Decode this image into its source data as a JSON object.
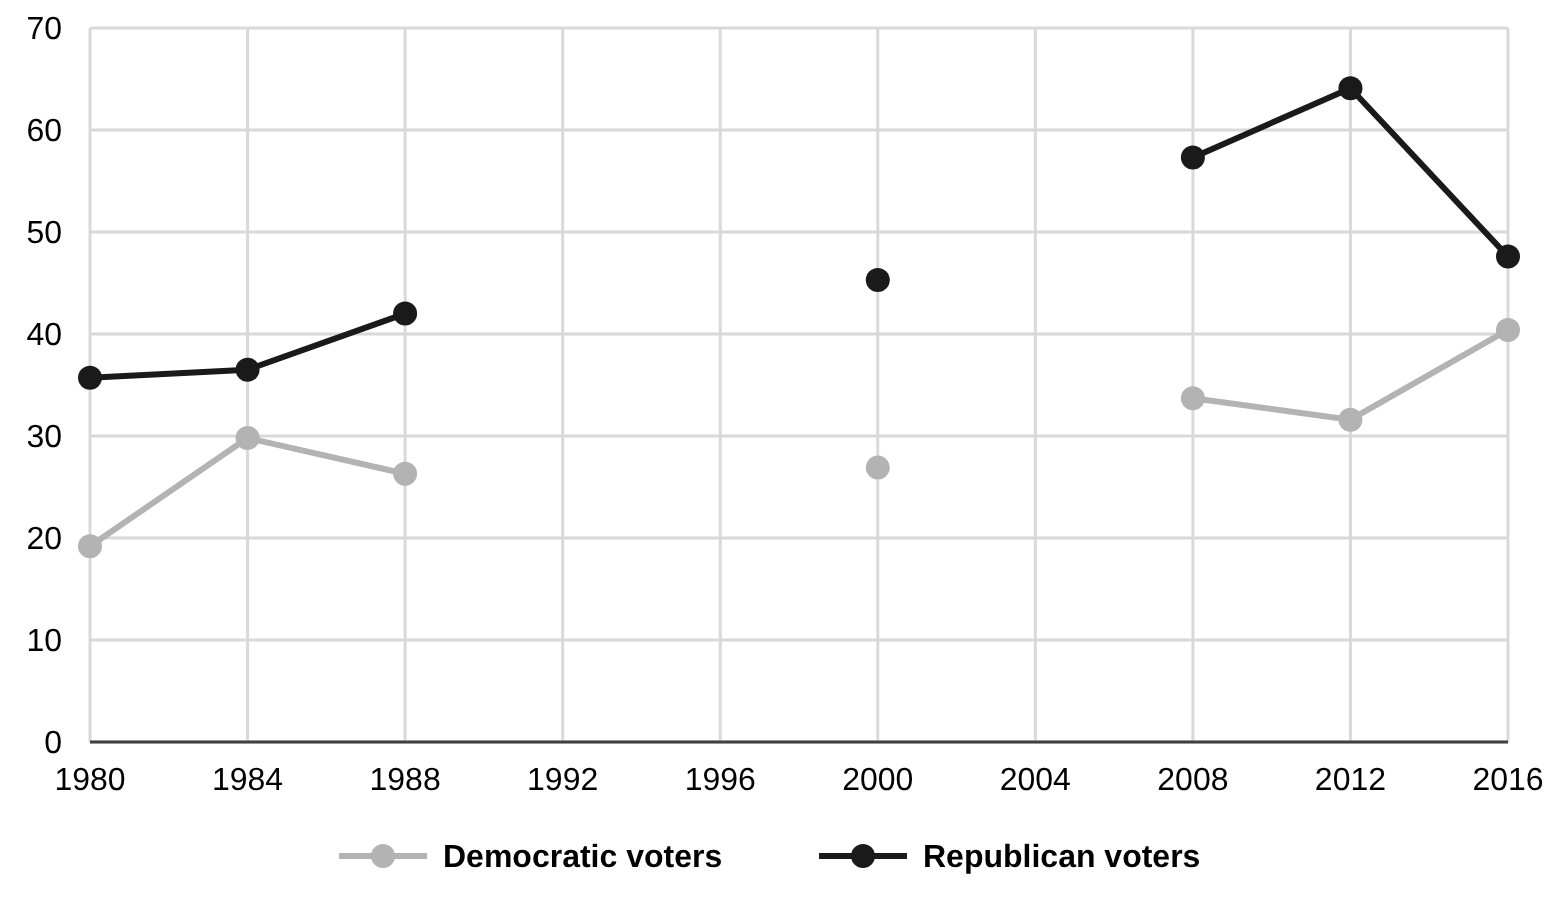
{
  "chart_data": {
    "type": "line",
    "x": [
      1980,
      1984,
      1988,
      1992,
      1996,
      2000,
      2004,
      2008,
      2012,
      2016
    ],
    "series": [
      {
        "name": "Democratic voters",
        "color": "#b3b3b3",
        "values": [
          19.2,
          29.8,
          26.3,
          null,
          null,
          26.9,
          null,
          33.7,
          31.6,
          40.4
        ]
      },
      {
        "name": "Republican voters",
        "color": "#1a1a1a",
        "values": [
          35.7,
          36.5,
          42.0,
          null,
          null,
          45.3,
          null,
          57.3,
          64.1,
          47.6
        ]
      }
    ],
    "xlim": [
      1980,
      2016
    ],
    "xticks": [
      1980,
      1984,
      1988,
      1992,
      1996,
      2000,
      2004,
      2008,
      2012,
      2016
    ],
    "ylim": [
      0,
      70
    ],
    "yticks": [
      0,
      10,
      20,
      30,
      40,
      50,
      60,
      70
    ],
    "grid": true,
    "legend": "bottom",
    "marker": "circle",
    "line_style": "solid"
  }
}
